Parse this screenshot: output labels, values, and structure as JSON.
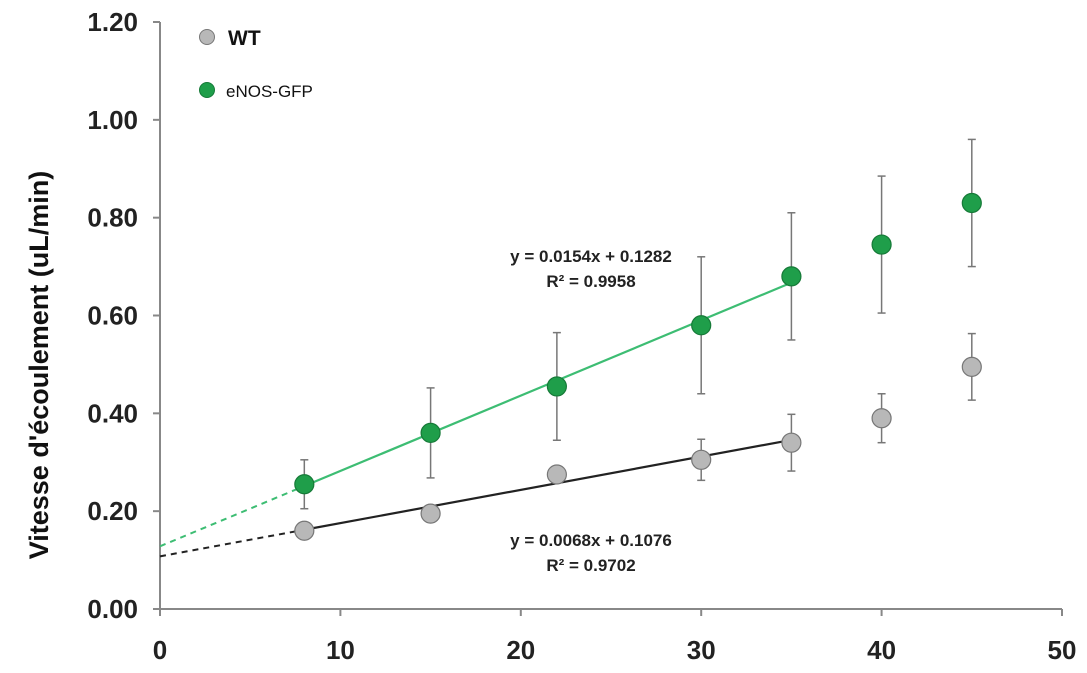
{
  "chart_data": {
    "type": "scatter",
    "title": "",
    "xlabel": "",
    "ylabel": "Vitesse d'écoulement (uL/min)",
    "xlim": [
      0,
      50
    ],
    "ylim": [
      0,
      1.2
    ],
    "x_ticks": [
      "0",
      "10",
      "20",
      "30",
      "40",
      "50"
    ],
    "y_ticks": [
      "0.00",
      "0.20",
      "0.40",
      "0.60",
      "0.80",
      "1.00",
      "1.20"
    ],
    "grid": false,
    "legend_position": "top-left",
    "series": [
      {
        "name": "WT",
        "color": "#b8b8b8",
        "x": [
          8,
          15,
          22,
          30,
          35,
          40,
          45
        ],
        "y": [
          0.16,
          0.195,
          0.275,
          0.305,
          0.34,
          0.39,
          0.495
        ],
        "error": [
          null,
          null,
          null,
          0.042,
          0.058,
          0.05,
          0.068
        ],
        "trendline": {
          "slope": 0.0068,
          "intercept": 0.1076,
          "x_range": [
            8,
            35
          ],
          "color": "#222222",
          "equation": "y = 0.0068x + 0.1076",
          "r2": "R² = 0.9702"
        }
      },
      {
        "name": "eNOS-GFP",
        "color": "#1f9e4a",
        "x": [
          8,
          15,
          22,
          30,
          35,
          40,
          45
        ],
        "y": [
          0.255,
          0.36,
          0.455,
          0.58,
          0.68,
          0.745,
          0.83
        ],
        "error": [
          0.05,
          0.092,
          0.11,
          0.14,
          0.13,
          0.14,
          0.13
        ],
        "trendline": {
          "slope": 0.0154,
          "intercept": 0.1282,
          "x_range": [
            8,
            35
          ],
          "color": "#3dbd73",
          "equation": "y = 0.0154x + 0.1282",
          "r2": "R² = 0.9958"
        }
      }
    ]
  }
}
